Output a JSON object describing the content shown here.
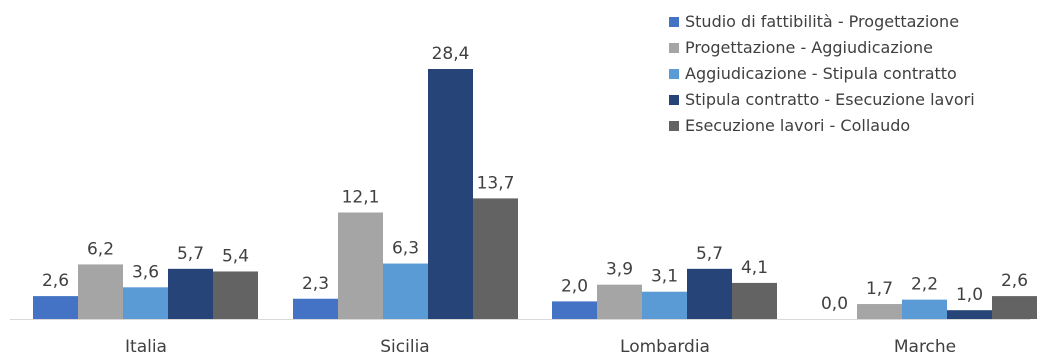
{
  "chart_data": {
    "type": "bar",
    "categories": [
      "Italia",
      "Sicilia",
      "Lombardia",
      "Marche"
    ],
    "series": [
      {
        "name": "Studio di fattibilità - Progettazione",
        "values": [
          2.6,
          2.3,
          2.0,
          0.0
        ],
        "labels": [
          "2,6",
          "2,3",
          "2,0",
          "0,0"
        ],
        "color": "#4472C4"
      },
      {
        "name": "Progettazione - Aggiudicazione",
        "values": [
          6.2,
          12.1,
          3.9,
          1.7
        ],
        "labels": [
          "6,2",
          "12,1",
          "3,9",
          "1,7"
        ],
        "color": "#A5A5A5"
      },
      {
        "name": "Aggiudicazione - Stipula contratto",
        "values": [
          3.6,
          6.3,
          3.1,
          2.2
        ],
        "labels": [
          "3,6",
          "6,3",
          "3,1",
          "2,2"
        ],
        "color": "#5B9BD5"
      },
      {
        "name": "Stipula contratto - Esecuzione lavori",
        "values": [
          5.7,
          28.4,
          5.7,
          1.0
        ],
        "labels": [
          "5,7",
          "28,4",
          "5,7",
          "1,0"
        ],
        "color": "#264478"
      },
      {
        "name": "Esecuzione lavori - Collaudo",
        "values": [
          5.4,
          13.7,
          4.1,
          2.6
        ],
        "labels": [
          "5,4",
          "13,7",
          "4,1",
          "2,6"
        ],
        "color": "#636363"
      }
    ],
    "ylim": [
      0,
      28.4
    ],
    "grid": false,
    "legend": "top-right",
    "baseline_color": "#D9D9D9"
  }
}
